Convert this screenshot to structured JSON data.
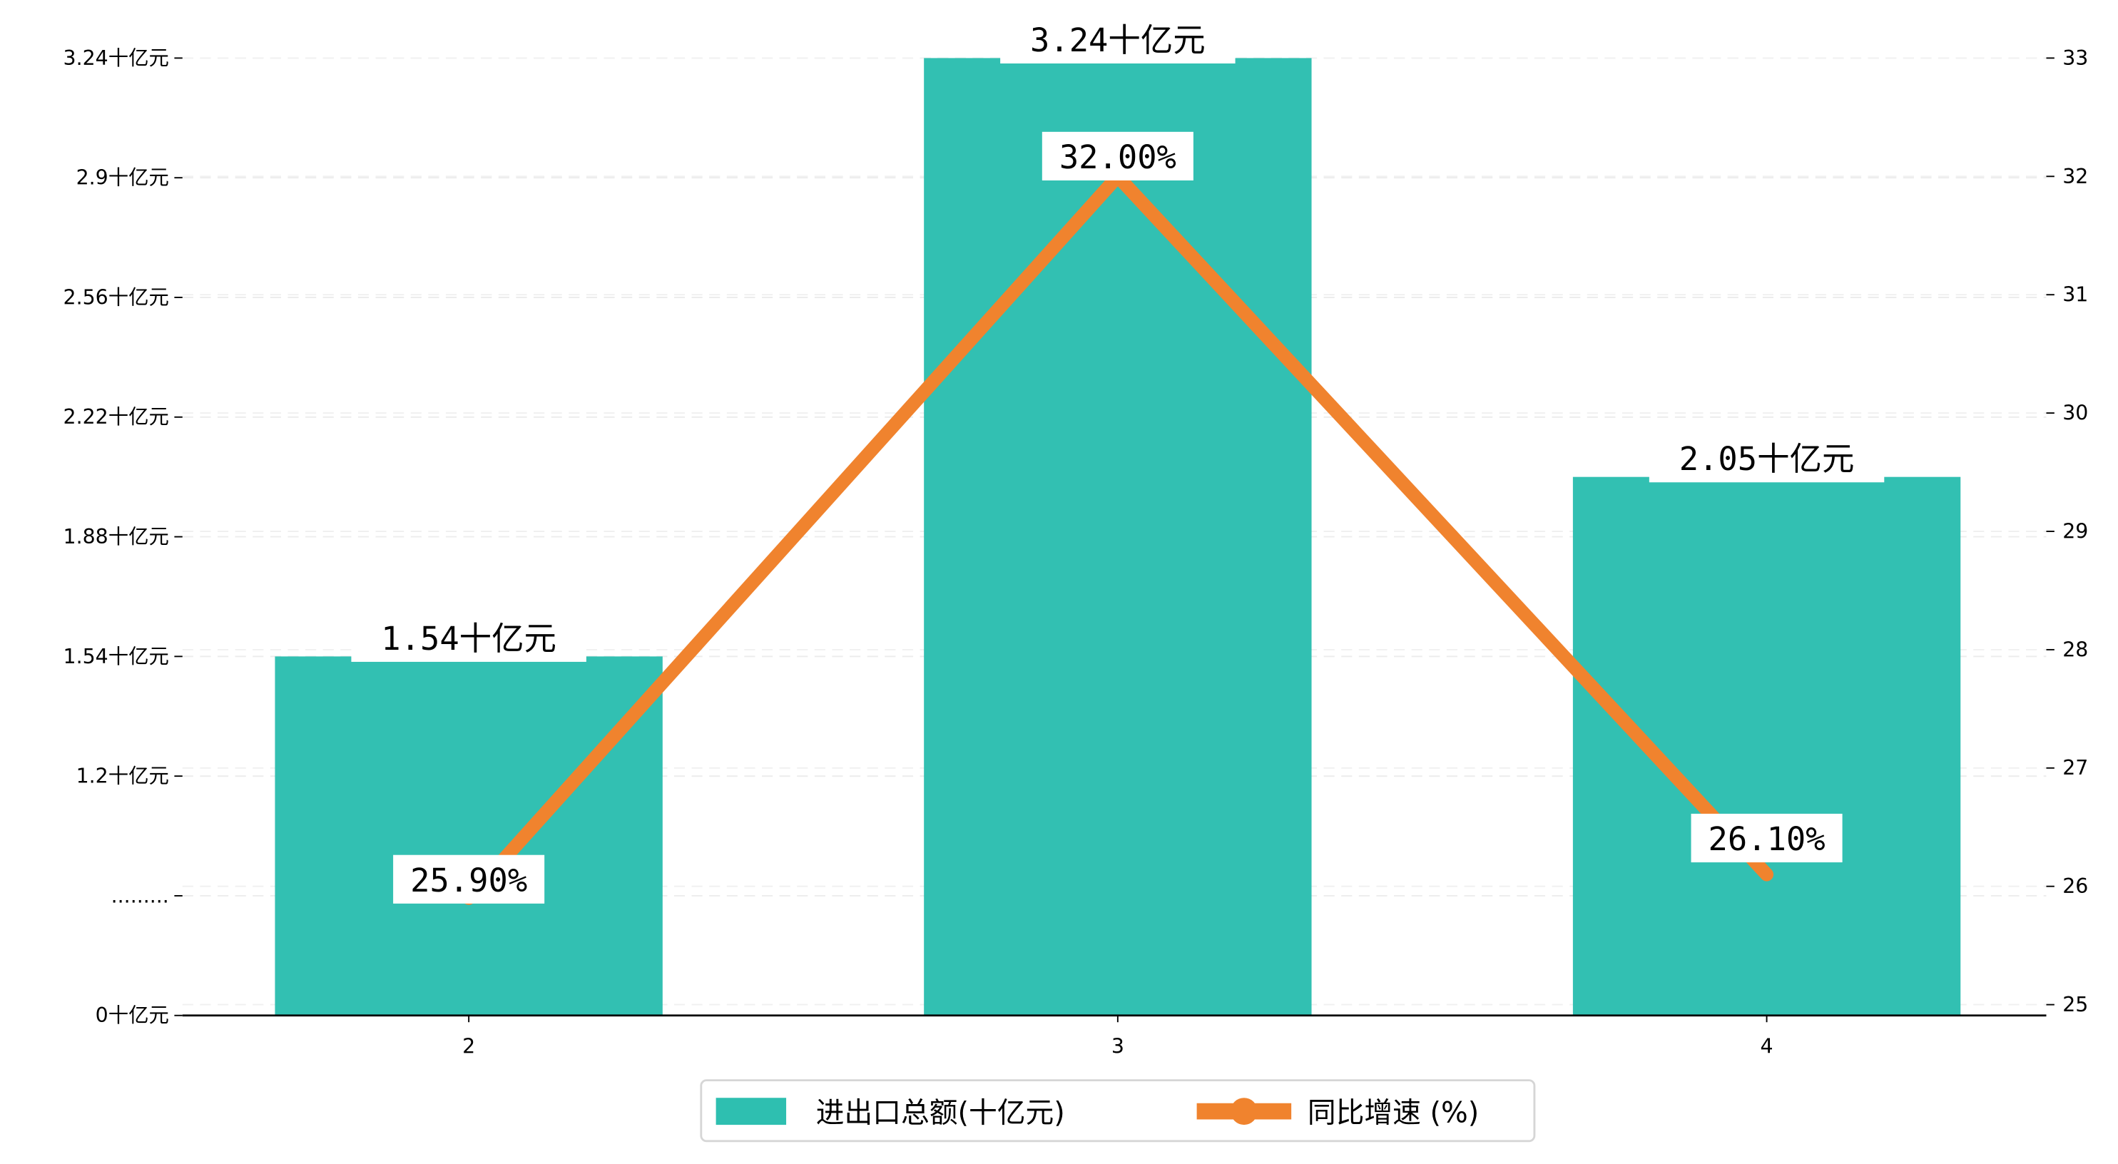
{
  "chart_data": {
    "type": "bar+line",
    "categories": [
      "2",
      "3",
      "4"
    ],
    "series": [
      {
        "name": "进出口总额(十亿元)",
        "type": "bar",
        "axis": "left",
        "values": [
          1.54,
          3.24,
          2.05
        ],
        "labels": [
          "1.54十亿元",
          "3.24十亿元",
          "2.05十亿元"
        ],
        "color": "#2EBFB0"
      },
      {
        "name": "同比增速 (%)",
        "type": "line",
        "axis": "right",
        "values": [
          25.9,
          32.0,
          26.1
        ],
        "labels": [
          "25.90%",
          "32.00%",
          "26.10%"
        ],
        "color": "#F0832E"
      }
    ],
    "left_axis": {
      "ticks": [
        {
          "value": 0,
          "label": "0十亿元"
        },
        {
          "value": 0.86,
          "label": "........."
        },
        {
          "value": 1.2,
          "label": "1.2十亿元"
        },
        {
          "value": 1.54,
          "label": "1.54十亿元"
        },
        {
          "value": 1.88,
          "label": "1.88十亿元"
        },
        {
          "value": 2.22,
          "label": "2.22十亿元"
        },
        {
          "value": 2.56,
          "label": "2.56十亿元"
        },
        {
          "value": 2.9,
          "label": "2.9十亿元"
        },
        {
          "value": 3.24,
          "label": "3.24十亿元"
        }
      ],
      "ylim": [
        0,
        3.24
      ]
    },
    "right_axis": {
      "ticks": [
        25,
        26,
        27,
        28,
        29,
        30,
        31,
        32,
        33
      ],
      "ylim": [
        25,
        33
      ]
    },
    "grid": "horizontal dashed",
    "legend_position": "bottom-center",
    "title": "",
    "xlabel": "",
    "ylabel": ""
  }
}
